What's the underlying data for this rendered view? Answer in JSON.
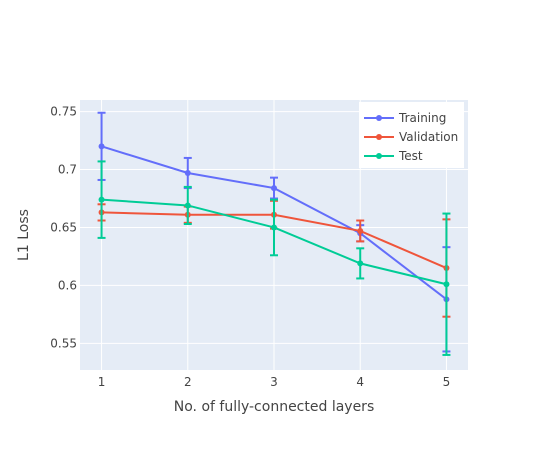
{
  "chart_data": {
    "type": "line",
    "title": "",
    "xlabel": "No. of fully-connected layers",
    "ylabel": "L1 Loss",
    "x": [
      1,
      2,
      3,
      4,
      5
    ],
    "xlim": [
      0.75,
      5.25
    ],
    "ylim": [
      0.527,
      0.76
    ],
    "xticks": [
      "1",
      "2",
      "3",
      "4",
      "5"
    ],
    "yticks": [
      0.55,
      0.6,
      0.65,
      0.7,
      0.75
    ],
    "ytick_labels": [
      "0.55",
      "0.6",
      "0.65",
      "0.7",
      "0.75"
    ],
    "grid": true,
    "legend_position": "top-right",
    "series": [
      {
        "name": "Training",
        "color": "#636efa",
        "values": [
          0.72,
          0.697,
          0.684,
          0.645,
          0.588
        ],
        "error_upper": [
          0.749,
          0.71,
          0.693,
          0.652,
          0.633
        ],
        "error_lower": [
          0.691,
          0.684,
          0.675,
          0.638,
          0.543
        ]
      },
      {
        "name": "Validation",
        "color": "#ef553b",
        "values": [
          0.663,
          0.661,
          0.661,
          0.647,
          0.615
        ],
        "error_upper": [
          0.67,
          0.668,
          0.673,
          0.656,
          0.657
        ],
        "error_lower": [
          0.656,
          0.654,
          0.649,
          0.638,
          0.573
        ]
      },
      {
        "name": "Test",
        "color": "#00cc96",
        "values": [
          0.674,
          0.669,
          0.65,
          0.619,
          0.601
        ],
        "error_upper": [
          0.707,
          0.685,
          0.674,
          0.632,
          0.662
        ],
        "error_lower": [
          0.641,
          0.653,
          0.626,
          0.606,
          0.54
        ]
      }
    ]
  }
}
